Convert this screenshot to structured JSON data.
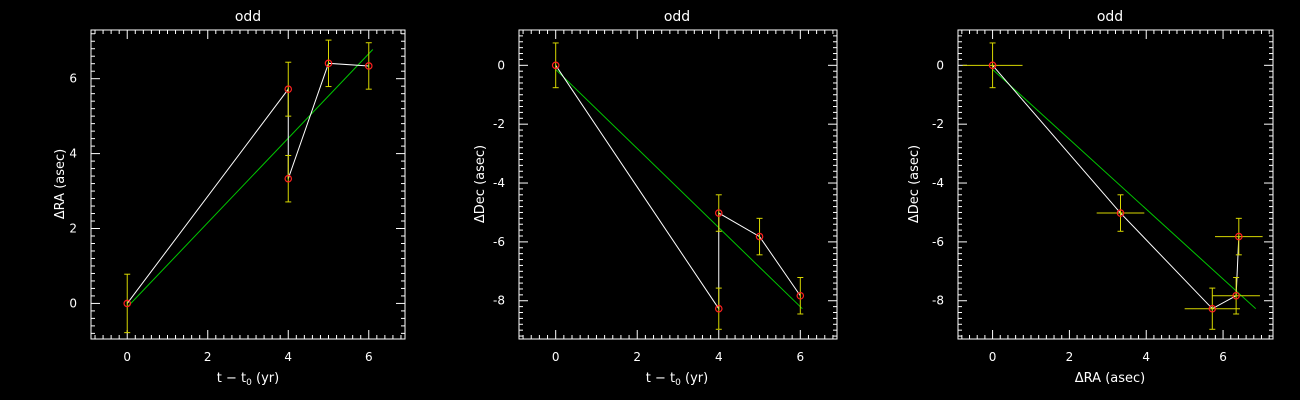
{
  "chart_data": [
    {
      "type": "scatter",
      "title": "odd",
      "xlabel": "t − t₀ (yr)",
      "xlabel_parts": {
        "main": "t − t",
        "sub": "0",
        "tail": " (yr)"
      },
      "ylabel": "ΔRA (asec)",
      "xlim": [
        -0.9,
        6.9
      ],
      "ylim": [
        -0.95,
        7.3
      ],
      "xticks": [
        0,
        2,
        4,
        6
      ],
      "yticks": [
        0,
        2,
        4,
        6
      ],
      "x": [
        0,
        4,
        4,
        5,
        6
      ],
      "y": [
        0,
        5.72,
        3.33,
        6.41,
        6.34
      ],
      "yerr": [
        0.78,
        0.72,
        0.62,
        0.62,
        0.62
      ],
      "fit": [
        [
          0,
          -0.1
        ],
        [
          6.1,
          6.78
        ]
      ]
    },
    {
      "type": "scatter",
      "title": "odd",
      "xlabel": "t − t₀ (yr)",
      "xlabel_parts": {
        "main": "t − t",
        "sub": "0",
        "tail": " (yr)"
      },
      "ylabel": "ΔDec (asec)",
      "xlim": [
        -0.9,
        6.9
      ],
      "ylim": [
        -9.3,
        1.2
      ],
      "xticks": [
        0,
        2,
        4,
        6
      ],
      "yticks": [
        0,
        -2,
        -4,
        -6,
        -8
      ],
      "x": [
        0,
        4,
        4,
        5,
        6
      ],
      "y": [
        0,
        -8.27,
        -5.02,
        -5.82,
        -7.83
      ],
      "yerr": [
        0.76,
        0.7,
        0.62,
        0.62,
        0.62
      ],
      "fit": [
        [
          0,
          -0.14
        ],
        [
          6.05,
          -8.27
        ]
      ]
    },
    {
      "type": "scatter",
      "title": "odd",
      "xlabel": "ΔRA (asec)",
      "xlabel_parts": {
        "main": "ΔRA (asec)",
        "sub": "",
        "tail": ""
      },
      "ylabel": "ΔDec (asec)",
      "xlim": [
        -0.9,
        7.3
      ],
      "ylim": [
        -9.3,
        1.2
      ],
      "xticks": [
        0,
        2,
        4,
        6
      ],
      "yticks": [
        0,
        -2,
        -4,
        -6,
        -8
      ],
      "x": [
        0,
        3.33,
        5.72,
        6.34,
        6.41
      ],
      "y": [
        0,
        -5.02,
        -8.27,
        -7.83,
        -5.82
      ],
      "xerr": [
        0.78,
        0.62,
        0.72,
        0.62,
        0.62
      ],
      "yerr": [
        0.76,
        0.62,
        0.7,
        0.62,
        0.62
      ],
      "fit": [
        [
          0,
          -0.14
        ],
        [
          6.85,
          -8.27
        ]
      ]
    }
  ],
  "colors": {
    "background": "#000000",
    "axes": "#ffffff",
    "connect_line": "#ffffff",
    "fit_line": "#00c800",
    "error_bars": "#d8d800",
    "markers": "#ff2020"
  }
}
